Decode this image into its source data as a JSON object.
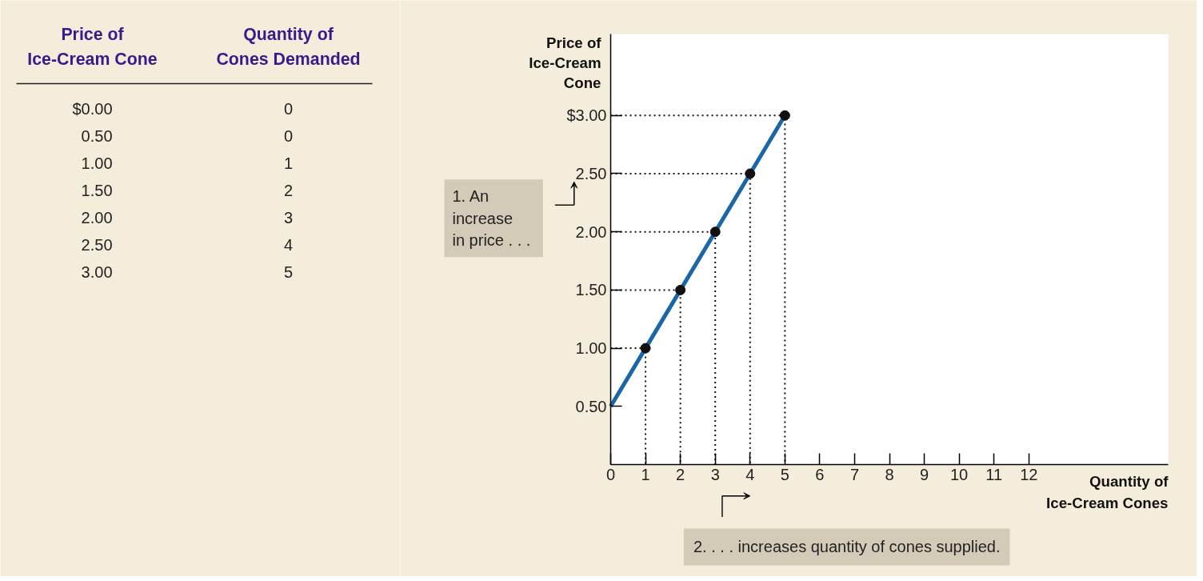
{
  "chart_data": {
    "type": "line",
    "xlabel": "Quantity of\nIce-Cream Cones",
    "ylabel": "Price of\nIce-Cream\nCone",
    "series": [
      {
        "color": "#1a66a8",
        "x": [
          0,
          1,
          2,
          3,
          4,
          5
        ],
        "values": [
          0.5,
          1.0,
          1.5,
          2.0,
          2.5,
          3.0
        ],
        "line_style": "solid"
      },
      {
        "type": "scatter",
        "color": "#111111",
        "x": [
          1,
          2,
          3,
          4,
          5
        ],
        "values": [
          1.0,
          1.5,
          2.0,
          2.5,
          3.0
        ],
        "marker": "circle"
      },
      {
        "color": "#111111",
        "x": [
          0,
          1,
          1
        ],
        "values": [
          1.0,
          1.0,
          0
        ],
        "line_style": "dotted"
      },
      {
        "color": "#111111",
        "x": [
          0,
          2,
          2
        ],
        "values": [
          1.5,
          1.5,
          0
        ],
        "line_style": "dotted"
      },
      {
        "color": "#111111",
        "x": [
          0,
          3,
          3
        ],
        "values": [
          2.0,
          2.0,
          0
        ],
        "line_style": "dotted"
      },
      {
        "color": "#111111",
        "x": [
          0,
          4,
          4
        ],
        "values": [
          2.5,
          2.5,
          0
        ],
        "line_style": "dotted"
      },
      {
        "color": "#111111",
        "x": [
          0,
          5,
          5
        ],
        "values": [
          3.0,
          3.0,
          0
        ],
        "line_style": "dotted"
      }
    ],
    "xlim": [
      0,
      16
    ],
    "ylim": [
      0,
      3.7
    ],
    "xticks": [
      0,
      1,
      2,
      3,
      4,
      5,
      6,
      7,
      8,
      9,
      10,
      11,
      12
    ],
    "yticks": [
      {
        "value": 0.5,
        "label": "0.50"
      },
      {
        "value": 1.0,
        "label": "1.00"
      },
      {
        "value": 1.5,
        "label": "1.50"
      },
      {
        "value": 2.0,
        "label": "2.00"
      },
      {
        "value": 2.5,
        "label": "2.50"
      },
      {
        "value": 3.0,
        "label": "$3.00"
      }
    ],
    "annotations": [
      "Price of\nIce-Cream Cone",
      "Quantity of\nCones Demanded",
      "$0.00",
      "0",
      "0.50",
      "0",
      "1.00",
      "1",
      "1.50",
      "2",
      "2.00",
      "3",
      "2.50",
      "4",
      "3.00",
      "5",
      "1. An\nincrease\n in price . . .",
      "2. . . . increases quantity of cones supplied."
    ]
  }
}
